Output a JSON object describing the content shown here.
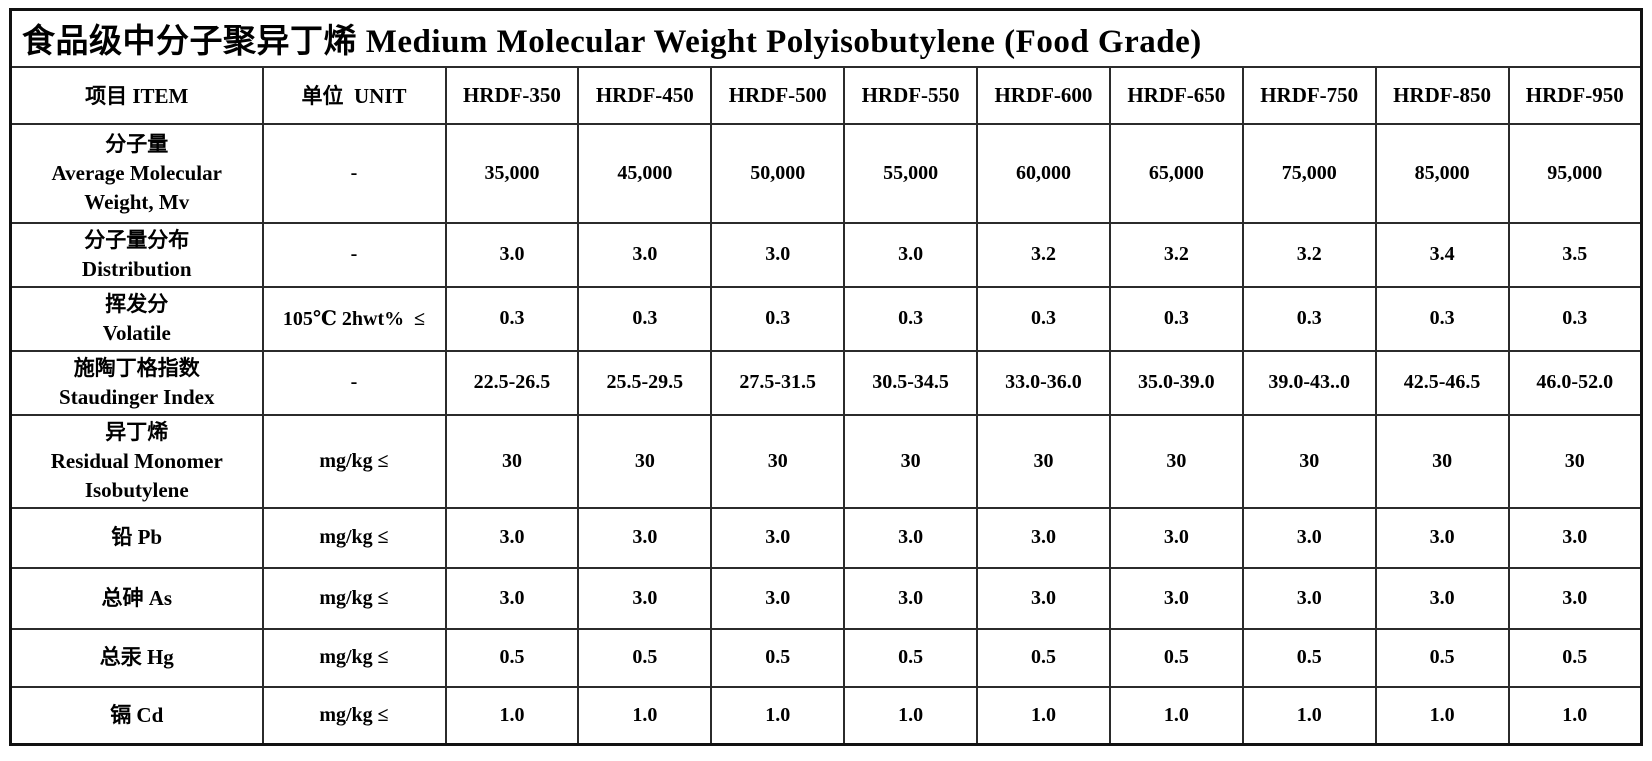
{
  "title": "食品级中分子聚异丁烯 Medium Molecular Weight Polyisobutylene (Food Grade)",
  "colors": {
    "background": "#ffffff",
    "text": "#000000",
    "border": "#1a1a1a"
  },
  "table": {
    "item_header": "项目 ITEM",
    "unit_header": "单位  UNIT",
    "grade_headers": [
      "HRDF-350",
      "HRDF-450",
      "HRDF-500",
      "HRDF-550",
      "HRDF-600",
      "HRDF-650",
      "HRDF-750",
      "HRDF-850",
      "HRDF-950"
    ],
    "rows": [
      {
        "item_lines": [
          "分子量",
          "Average Molecular",
          "Weight, Mv"
        ],
        "unit": "-",
        "values": [
          "35,000",
          "45,000",
          "50,000",
          "55,000",
          "60,000",
          "65,000",
          "75,000",
          "85,000",
          "95,000"
        ]
      },
      {
        "item_lines": [
          "分子量分布",
          "Distribution"
        ],
        "unit": "-",
        "values": [
          "3.0",
          "3.0",
          "3.0",
          "3.0",
          "3.2",
          "3.2",
          "3.2",
          "3.4",
          "3.5"
        ]
      },
      {
        "item_lines": [
          "挥发分",
          "Volatile"
        ],
        "unit": "105℃ 2hwt%  ≤",
        "values": [
          "0.3",
          "0.3",
          "0.3",
          "0.3",
          "0.3",
          "0.3",
          "0.3",
          "0.3",
          "0.3"
        ]
      },
      {
        "item_lines": [
          "施陶丁格指数",
          "Staudinger Index"
        ],
        "unit": "-",
        "values": [
          "22.5-26.5",
          "25.5-29.5",
          "27.5-31.5",
          "30.5-34.5",
          "33.0-36.0",
          "35.0-39.0",
          "39.0-43..0",
          "42.5-46.5",
          "46.0-52.0"
        ]
      },
      {
        "item_lines": [
          "异丁烯",
          "Residual Monomer",
          "Isobutylene"
        ],
        "unit": "mg/kg ≤",
        "values": [
          "30",
          "30",
          "30",
          "30",
          "30",
          "30",
          "30",
          "30",
          "30"
        ]
      },
      {
        "item_lines": [
          "铅 Pb"
        ],
        "unit": "mg/kg ≤",
        "values": [
          "3.0",
          "3.0",
          "3.0",
          "3.0",
          "3.0",
          "3.0",
          "3.0",
          "3.0",
          "3.0"
        ]
      },
      {
        "item_lines": [
          "总砷 As"
        ],
        "unit": "mg/kg ≤",
        "values": [
          "3.0",
          "3.0",
          "3.0",
          "3.0",
          "3.0",
          "3.0",
          "3.0",
          "3.0",
          "3.0"
        ]
      },
      {
        "item_lines": [
          "总汞 Hg"
        ],
        "unit": "mg/kg ≤",
        "values": [
          "0.5",
          "0.5",
          "0.5",
          "0.5",
          "0.5",
          "0.5",
          "0.5",
          "0.5",
          "0.5"
        ]
      },
      {
        "item_lines": [
          "镉 Cd"
        ],
        "unit": "mg/kg ≤",
        "values": [
          "1.0",
          "1.0",
          "1.0",
          "1.0",
          "1.0",
          "1.0",
          "1.0",
          "1.0",
          "1.0"
        ]
      }
    ]
  }
}
